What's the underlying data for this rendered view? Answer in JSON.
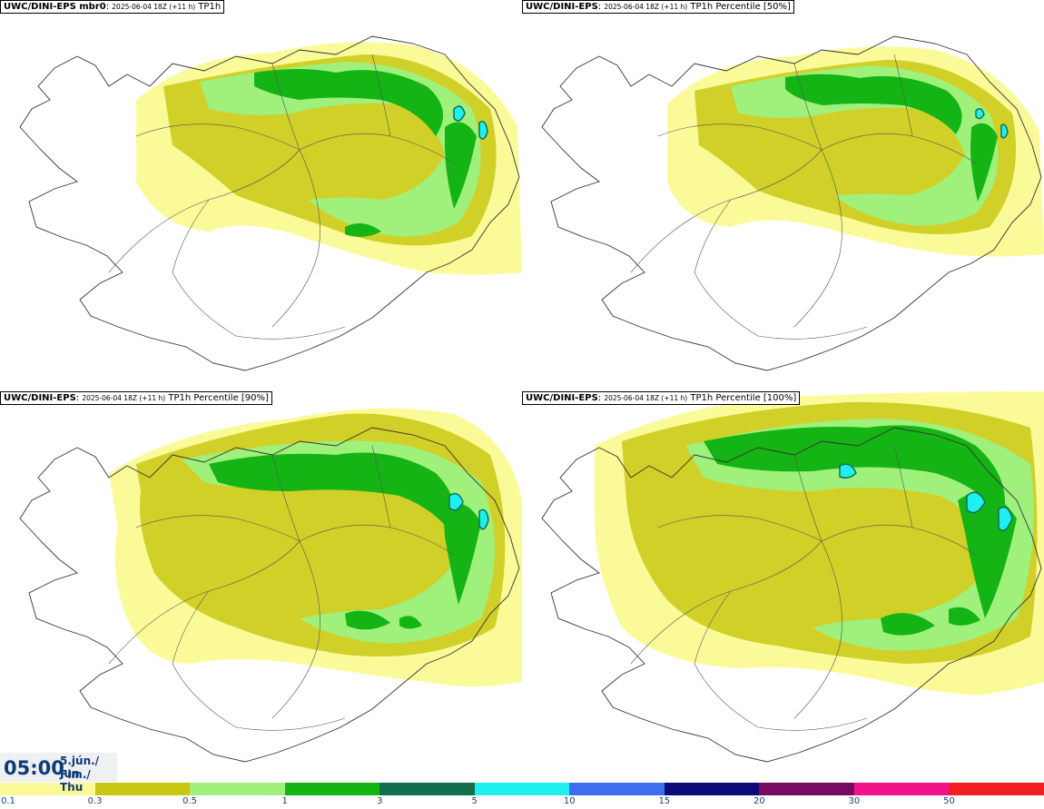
{
  "panels": [
    {
      "model": "UWC/DINI-EPS mbr0",
      "meta": "2025-06-04 18Z (+11 h)",
      "field": "TP1h",
      "level": 1
    },
    {
      "model": "UWC/DINI-EPS",
      "meta": "2025-06-04 18Z (+11 h)",
      "field": "TP1h Percentile [50%]",
      "level": 1
    },
    {
      "model": "UWC/DINI-EPS",
      "meta": "2025-06-04 18Z (+11 h)",
      "field": "TP1h Percentile [90%]",
      "level": 2
    },
    {
      "model": "UWC/DINI-EPS",
      "meta": "2025-06-04 18Z (+11 h)",
      "field": "TP1h Percentile [100%]",
      "level": 3
    }
  ],
  "time": {
    "hour": "05:00",
    "date_line1": "5.jún./ Jun",
    "date_line2": "Fim./ Thu"
  },
  "legend": {
    "colors": [
      "#fafa99",
      "#c8c814",
      "#a0f07c",
      "#14b414",
      "#146e50",
      "#1ef0f0",
      "#3c6ef0",
      "#0a0a78",
      "#780a64",
      "#f0148c",
      "#f01e1e"
    ],
    "labels": [
      "0.1",
      "0.3",
      "0.5",
      "1",
      "3",
      "5",
      "10",
      "15",
      "20",
      "30",
      "50"
    ]
  }
}
